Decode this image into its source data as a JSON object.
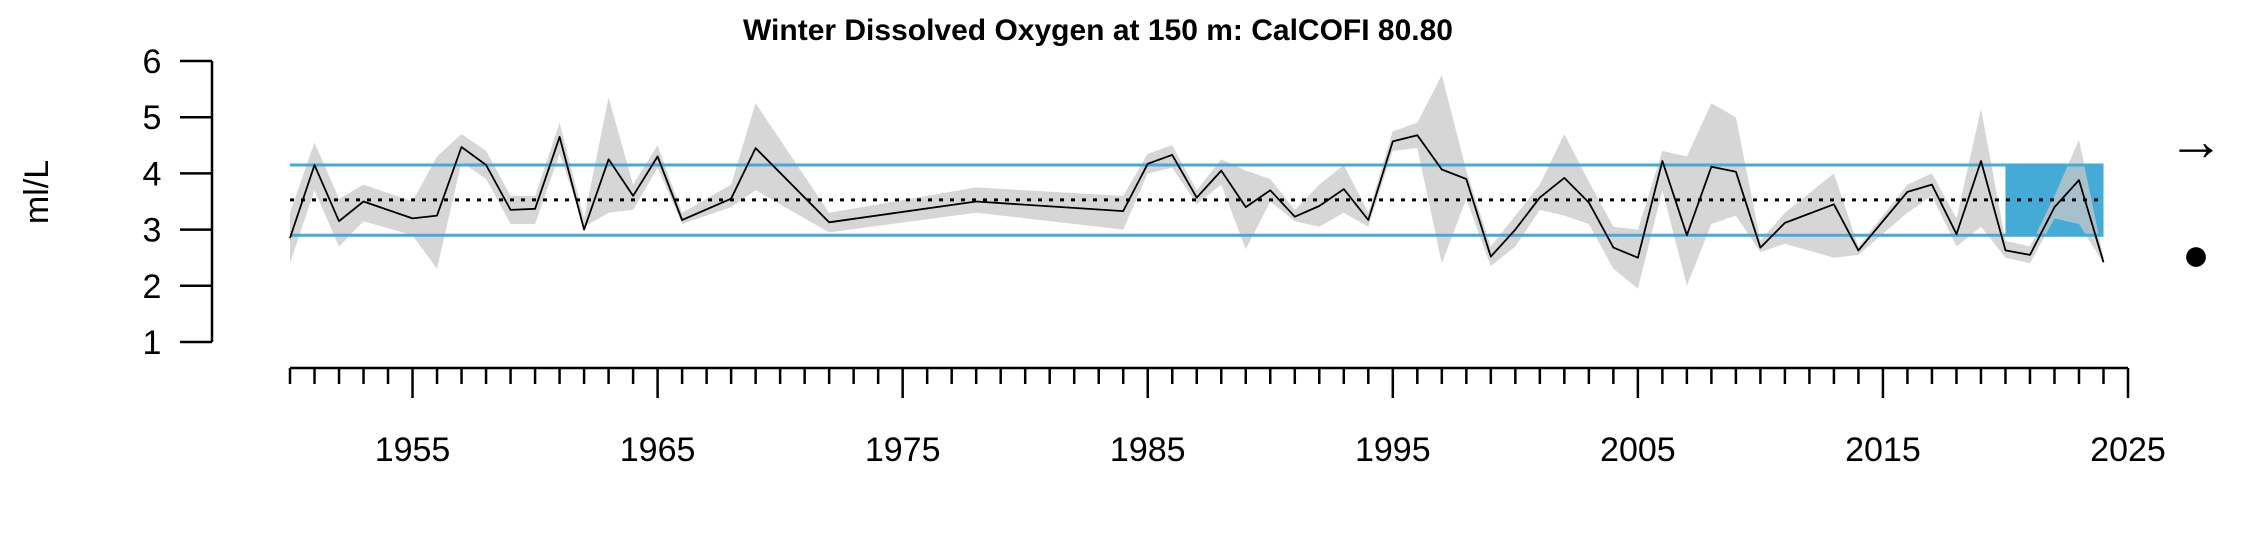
{
  "chart_data": {
    "type": "line",
    "title": "Winter Dissolved Oxygen at 150 m: CalCOFI 80.80",
    "ylabel": "ml/L",
    "xlabel": "",
    "xlim": [
      1950,
      2025
    ],
    "ylim": [
      1,
      6
    ],
    "yticks": [
      1,
      2,
      3,
      4,
      5,
      6
    ],
    "ytick_labels": [
      "1",
      "2",
      "3",
      "4",
      "5",
      "6"
    ],
    "xticks_labeled": [
      1955,
      1965,
      1975,
      1985,
      1995,
      2005,
      2015,
      2025
    ],
    "xtick_labels": [
      "1955",
      "1965",
      "1975",
      "1985",
      "1995",
      "2005",
      "2015",
      "2025"
    ],
    "minor_tick_start": 1950,
    "minor_tick_end": 2025,
    "mean": 3.53,
    "upper_sd": 4.15,
    "lower_sd": 2.9,
    "recent_window": [
      2020,
      2024
    ],
    "trend_arrow": "→",
    "mean_indicator": "●",
    "series": [
      {
        "x": [
          1950,
          1951,
          1952,
          1953,
          1955,
          1956,
          1957,
          1958,
          1959,
          1960,
          1961,
          1962,
          1963,
          1964,
          1965,
          1966,
          1968,
          1969,
          1972,
          1978,
          1984,
          1985,
          1986,
          1987,
          1988,
          1989,
          1990,
          1991,
          1992,
          1993,
          1994,
          1995,
          1996,
          1997,
          1998,
          1999,
          2000,
          2001,
          2002,
          2003,
          2004,
          2005,
          2006,
          2007,
          2008,
          2009,
          2010,
          2011,
          2013,
          2014,
          2016,
          2017,
          2018,
          2019,
          2020,
          2021,
          2022,
          2023,
          2024
        ],
        "y": [
          2.85,
          4.15,
          3.15,
          3.5,
          3.2,
          3.25,
          4.47,
          4.15,
          3.35,
          3.37,
          4.65,
          3.0,
          4.25,
          3.6,
          4.3,
          3.17,
          3.55,
          4.45,
          3.13,
          3.5,
          3.33,
          4.17,
          4.33,
          3.57,
          4.05,
          3.4,
          3.7,
          3.23,
          3.42,
          3.72,
          3.17,
          4.57,
          4.68,
          4.07,
          3.9,
          2.52,
          3.0,
          3.57,
          3.92,
          3.48,
          2.68,
          2.5,
          4.22,
          2.9,
          4.12,
          4.03,
          2.68,
          3.12,
          3.45,
          2.63,
          3.67,
          3.8,
          2.92,
          4.22,
          2.63,
          2.55,
          3.4,
          3.88,
          2.42
        ],
        "lower": [
          2.4,
          3.7,
          2.7,
          3.15,
          2.9,
          2.3,
          4.2,
          3.9,
          3.1,
          3.1,
          4.35,
          3.05,
          3.3,
          3.35,
          4.1,
          3.1,
          3.4,
          3.7,
          2.95,
          3.3,
          3.0,
          4.0,
          4.1,
          3.45,
          3.8,
          2.65,
          3.5,
          3.15,
          3.05,
          3.3,
          3.05,
          4.4,
          4.45,
          2.4,
          3.55,
          2.35,
          2.7,
          3.35,
          3.25,
          3.1,
          2.3,
          1.95,
          3.7,
          2.0,
          3.1,
          3.25,
          2.6,
          2.75,
          2.5,
          2.55,
          3.3,
          3.6,
          2.7,
          3.05,
          2.5,
          2.4,
          3.2,
          3.1,
          2.4
        ],
        "upper": [
          3.3,
          4.55,
          3.55,
          3.8,
          3.5,
          4.3,
          4.7,
          4.4,
          3.6,
          3.6,
          4.9,
          3.2,
          5.35,
          3.8,
          4.5,
          3.3,
          3.8,
          5.25,
          3.3,
          3.75,
          3.6,
          4.35,
          4.5,
          3.7,
          4.25,
          4.05,
          3.9,
          3.35,
          3.8,
          4.15,
          3.3,
          4.75,
          4.9,
          5.75,
          4.05,
          2.7,
          3.25,
          3.8,
          4.7,
          3.85,
          3.05,
          3.0,
          4.4,
          4.3,
          5.25,
          5.0,
          2.8,
          3.3,
          4.0,
          2.7,
          3.8,
          4.0,
          3.2,
          5.15,
          2.8,
          2.7,
          3.6,
          4.6,
          2.5
        ]
      }
    ]
  }
}
